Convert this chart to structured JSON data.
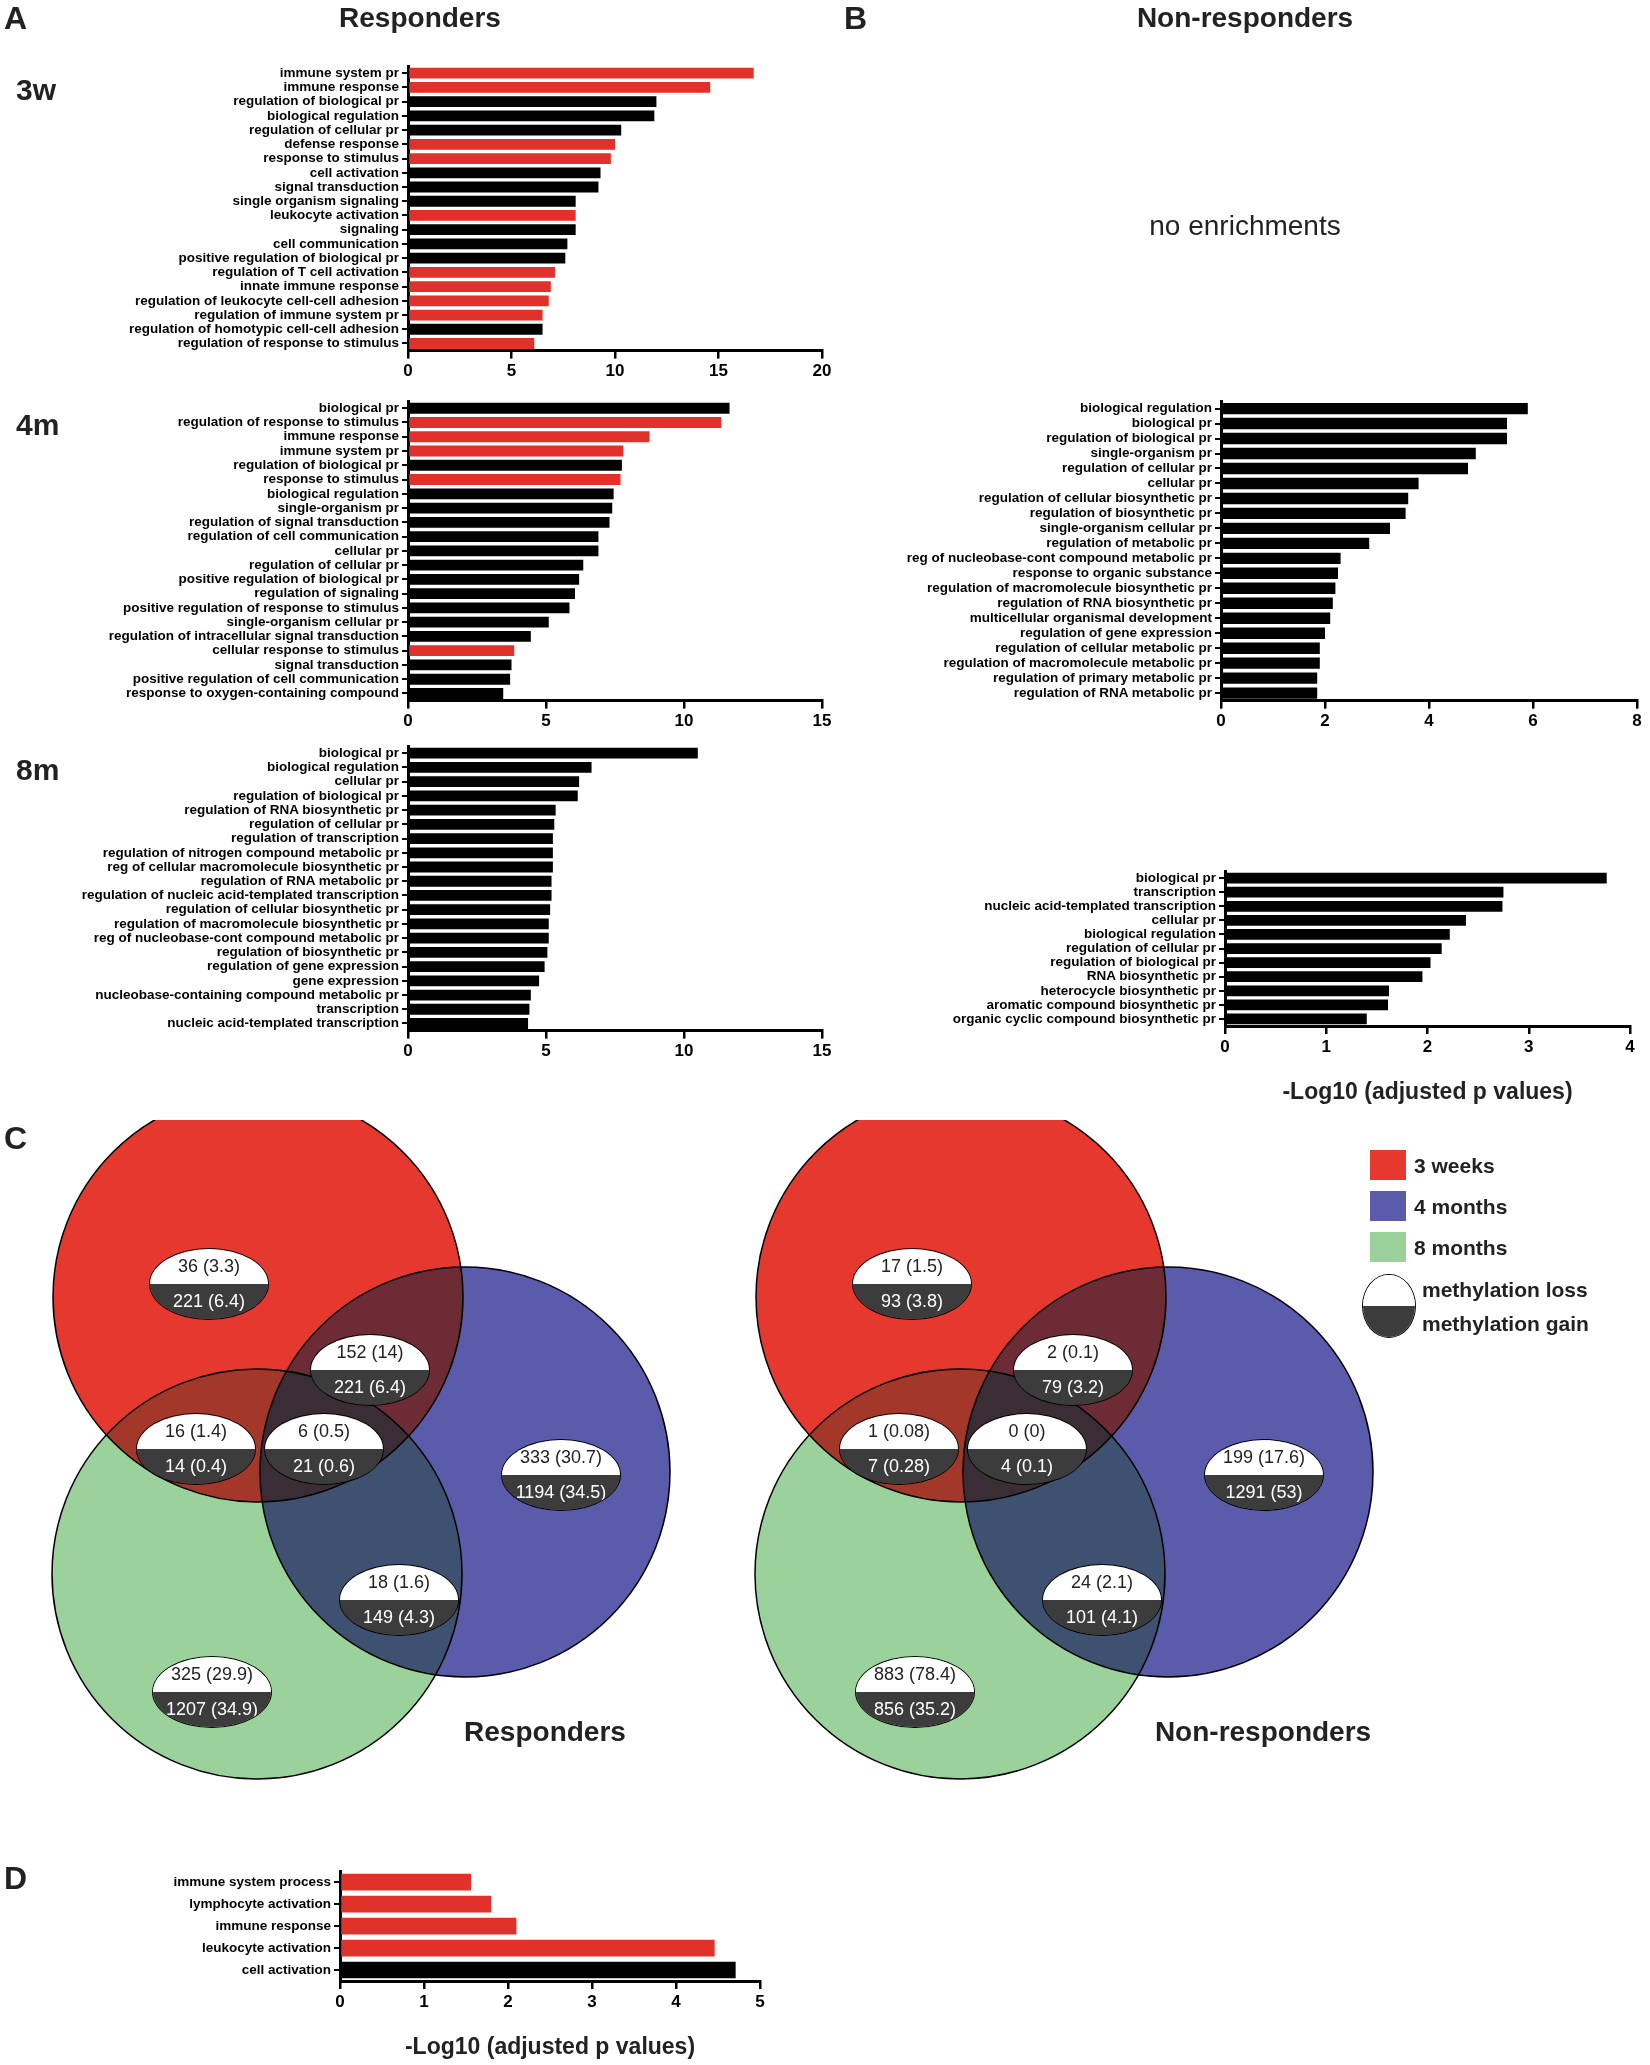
{
  "chart_data": [
    {
      "type": "bar",
      "orientation": "horizontal",
      "title": "Responders",
      "subtitle": "3w",
      "annotations": [
        "A"
      ],
      "categories": [
        "immune system pr",
        "immune response",
        "regulation of biological pr",
        "biological regulation",
        "regulation of cellular pr",
        "defense response",
        "response to stimulus",
        "cell activation",
        "signal transduction",
        "single organism signaling",
        "leukocyte activation",
        "signaling",
        "cell communication",
        "positive regulation of biological pr",
        "regulation of T cell activation",
        "innate immune response",
        "regulation of leukocyte cell-cell adhesion",
        "regulation of immune system pr",
        "regulation of homotypic cell-cell adhesion",
        "regulation of response to stimulus"
      ],
      "values": [
        16.7,
        14.6,
        12.0,
        11.9,
        10.3,
        10.0,
        9.8,
        9.3,
        9.2,
        8.1,
        8.1,
        8.1,
        7.7,
        7.6,
        7.1,
        6.9,
        6.8,
        6.5,
        6.5,
        6.1
      ],
      "colors": [
        "#e0322b",
        "#e0322b",
        "#000000",
        "#000000",
        "#000000",
        "#e0322b",
        "#e0322b",
        "#000000",
        "#000000",
        "#000000",
        "#e0322b",
        "#000000",
        "#000000",
        "#000000",
        "#e0322b",
        "#e0322b",
        "#e0322b",
        "#e0322b",
        "#000000",
        "#e0322b"
      ],
      "xlim": [
        0,
        20
      ],
      "xticks": [
        0,
        5,
        10,
        15,
        20
      ]
    },
    {
      "type": "other",
      "title": "Non-responders",
      "annotations": [
        "B",
        "no enrichments"
      ]
    },
    {
      "type": "bar",
      "orientation": "horizontal",
      "subtitle": "4m",
      "categories": [
        "biological pr",
        "regulation of response to stimulus",
        "immune response",
        "immune system pr",
        "regulation of biological pr",
        "response to stimulus",
        "biological regulation",
        "single-organism pr",
        "regulation of signal transduction",
        "regulation of cell communication",
        "cellular pr",
        "regulation of cellular pr",
        "positive regulation of biological pr",
        "regulation of signaling",
        "positive regulation of response to stimulus",
        "single-organism cellular pr",
        "regulation of intracellular signal transduction",
        "cellular response to stimulus",
        "signal transduction",
        "positive regulation of cell communication",
        "response to oxygen-containing compound"
      ],
      "values": [
        11.65,
        11.35,
        8.75,
        7.8,
        7.75,
        7.7,
        7.45,
        7.4,
        7.3,
        6.9,
        6.9,
        6.35,
        6.2,
        6.05,
        5.85,
        5.1,
        4.45,
        3.85,
        3.75,
        3.7,
        3.45
      ],
      "colors": [
        "#000000",
        "#e0322b",
        "#e0322b",
        "#e0322b",
        "#000000",
        "#e0322b",
        "#000000",
        "#000000",
        "#000000",
        "#000000",
        "#000000",
        "#000000",
        "#000000",
        "#000000",
        "#000000",
        "#000000",
        "#000000",
        "#e0322b",
        "#000000",
        "#000000",
        "#000000"
      ],
      "xlim": [
        0,
        15
      ],
      "xticks": [
        0,
        5,
        10,
        15
      ]
    },
    {
      "type": "bar",
      "orientation": "horizontal",
      "categories": [
        "biological regulation",
        "biological pr",
        "regulation of biological pr",
        "single-organism pr",
        "regulation of cellular pr",
        "cellular pr",
        "regulation of cellular biosynthetic pr",
        "regulation of biosynthetic pr",
        "single-organism cellular pr",
        "regulation of metabolic pr",
        "reg of nucleobase-cont compound metabolic pr",
        "response to organic substance",
        "regulation of macromolecule biosynthetic pr",
        "regulation of RNA biosynthetic pr",
        "multicellular organismal development",
        "regulation of gene expression",
        "regulation of cellular metabolic pr",
        "regulation of macromolecule metabolic pr",
        "regulation of primary metabolic pr",
        "regulation of RNA metabolic pr"
      ],
      "values": [
        5.9,
        5.5,
        5.5,
        4.9,
        4.75,
        3.8,
        3.6,
        3.55,
        3.25,
        2.85,
        2.3,
        2.25,
        2.2,
        2.15,
        2.1,
        2.0,
        1.9,
        1.9,
        1.85,
        1.85
      ],
      "color": "#000000",
      "xlim": [
        0,
        8
      ],
      "xticks": [
        0,
        2,
        4,
        6,
        8
      ]
    },
    {
      "type": "bar",
      "orientation": "horizontal",
      "subtitle": "8m",
      "categories": [
        "biological pr",
        "biological regulation",
        "cellular pr",
        "regulation of biological pr",
        "regulation of RNA biosynthetic pr",
        "regulation of cellular pr",
        "regulation of transcription",
        "regulation of nitrogen compound metabolic pr",
        "reg of cellular macromolecule biosynthetic pr",
        "regulation of RNA metabolic pr",
        "regulation of nucleic acid-templated transcription",
        "regulation of cellular biosynthetic pr",
        "regulation of macromolecule biosynthetic pr",
        "reg of nucleobase-cont compound metabolic pr",
        "regulation of biosynthetic pr",
        "regulation of gene expression",
        "gene expression",
        "nucleobase-containing compound metabolic pr",
        "transcription",
        "nucleic acid-templated transcription"
      ],
      "values": [
        10.5,
        6.65,
        6.2,
        6.15,
        5.35,
        5.3,
        5.25,
        5.25,
        5.25,
        5.2,
        5.2,
        5.15,
        5.1,
        5.1,
        5.05,
        4.95,
        4.75,
        4.45,
        4.4,
        4.35
      ],
      "color": "#000000",
      "xlim": [
        0,
        15
      ],
      "xticks": [
        0,
        5,
        10,
        15
      ]
    },
    {
      "type": "bar",
      "orientation": "horizontal",
      "xlabel": "-Log10 (adjusted p values)",
      "categories": [
        "biological pr",
        "transcription",
        "nucleic acid-templated transcription",
        "cellular pr",
        "biological regulation",
        "regulation of cellular pr",
        "regulation of biological pr",
        "RNA biosynthetic pr",
        "heterocycle biosynthetic pr",
        "aromatic compound biosynthetic pr",
        "organic cyclic compound biosynthetic pr"
      ],
      "values": [
        3.77,
        2.75,
        2.74,
        2.38,
        2.22,
        2.14,
        2.03,
        1.95,
        1.62,
        1.61,
        1.4
      ],
      "color": "#000000",
      "xlim": [
        0,
        4
      ],
      "xticks": [
        0,
        1,
        2,
        3,
        4
      ]
    },
    {
      "type": "other",
      "title": "Responders",
      "annotations": [
        "C",
        "36 (3.3)",
        "221 (6.4)",
        "152 (14)",
        "221 (6.4)",
        "333 (30.7)",
        "1194 (34.5)",
        "16 (1.4)",
        "14 (0.4)",
        "6 (0.5)",
        "21 (0.6)",
        "18 (1.6)",
        "149 (4.3)",
        "325 (29.9)",
        "1207 (34.9)"
      ]
    },
    {
      "type": "other",
      "title": "Non-responders",
      "annotations": [
        "3 weeks",
        "4 months",
        "8 months",
        "methylation loss",
        "methylation gain",
        "17 (1.5)",
        "93 (3.8)",
        "2 (0.1)",
        "79 (3.2)",
        "199 (17.6)",
        "1291 (53)",
        "1 (0.08)",
        "7 (0.28)",
        "0 (0)",
        "4 (0.1)",
        "24 (2.1)",
        "101 (4.1)",
        "883 (78.4)",
        "856 (35.2)"
      ]
    },
    {
      "type": "bar",
      "orientation": "horizontal",
      "annotations": [
        "D"
      ],
      "xlabel": "-Log10 (adjusted p values)",
      "categories": [
        "immune system process",
        "lymphocyte activation",
        "immune response",
        "leukocyte activation",
        "cell activation"
      ],
      "values": [
        1.56,
        1.8,
        2.1,
        4.46,
        4.71
      ],
      "colors": [
        "#e0322b",
        "#e0322b",
        "#e0322b",
        "#e0322b",
        "#000000"
      ],
      "xlim": [
        0,
        5
      ],
      "xticks": [
        0,
        1,
        2,
        3,
        4,
        5
      ]
    }
  ]
}
